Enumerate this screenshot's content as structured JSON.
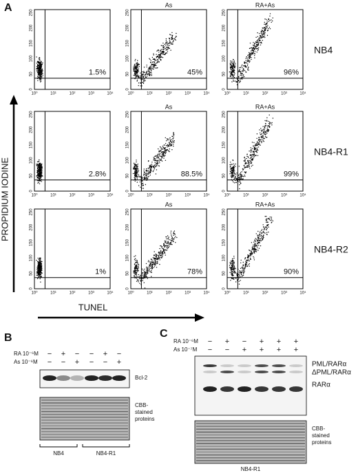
{
  "panel_a": {
    "label": "A",
    "y_axis_label": "PROPIDIUM IODINE",
    "x_axis_label": "TUNEL",
    "x_tick_labels": [
      "10⁰",
      "10¹",
      "10²",
      "10³",
      "10⁴"
    ],
    "y_tick_labels": [
      "0",
      "50",
      "100",
      "150",
      "200",
      "250"
    ],
    "rows": [
      {
        "cell_line": "NB4",
        "plots": [
          {
            "percent": "1.5%"
          },
          {
            "treatment": "As",
            "percent": "45%"
          },
          {
            "treatment": "RA+As",
            "percent": "96%"
          }
        ]
      },
      {
        "cell_line": "NB4-R1",
        "plots": [
          {
            "percent": "2.8%"
          },
          {
            "treatment": "As",
            "percent": "88.5%"
          },
          {
            "treatment": "RA+As",
            "percent": "99%"
          }
        ]
      },
      {
        "cell_line": "NB4-R2",
        "plots": [
          {
            "percent": "1%"
          },
          {
            "treatment": "As",
            "percent": "78%"
          },
          {
            "treatment": "RA+As",
            "percent": "90%"
          }
        ]
      }
    ]
  },
  "panel_b": {
    "label": "B",
    "treatments": [
      {
        "label": "RA 10⁻⁶M",
        "marks": [
          "−",
          "+",
          "−",
          "−",
          "+",
          "−"
        ]
      },
      {
        "label": "As 10⁻⁶M",
        "marks": [
          "−",
          "−",
          "+",
          "−",
          "−",
          "+"
        ]
      }
    ],
    "band_labels": [
      "Bcl-2"
    ],
    "stain_label": [
      "CBB-",
      "stained",
      "proteins"
    ],
    "groups": [
      "NB4",
      "NB4-R1"
    ]
  },
  "panel_c": {
    "label": "C",
    "treatments": [
      {
        "label": "RA 10⁻⁶M",
        "marks": [
          "−",
          "+",
          "−",
          "+",
          "+",
          "+"
        ]
      },
      {
        "label": "As 10⁻⁷M",
        "marks": [
          "−",
          "−",
          "+",
          "+",
          "+",
          "+"
        ]
      }
    ],
    "band_labels": [
      "PML/RARα",
      "ΔPML/RARα",
      "RARα"
    ],
    "stain_label": [
      "CBB-",
      "stained",
      "proteins"
    ],
    "groups": [
      "NB4-R1"
    ]
  }
}
